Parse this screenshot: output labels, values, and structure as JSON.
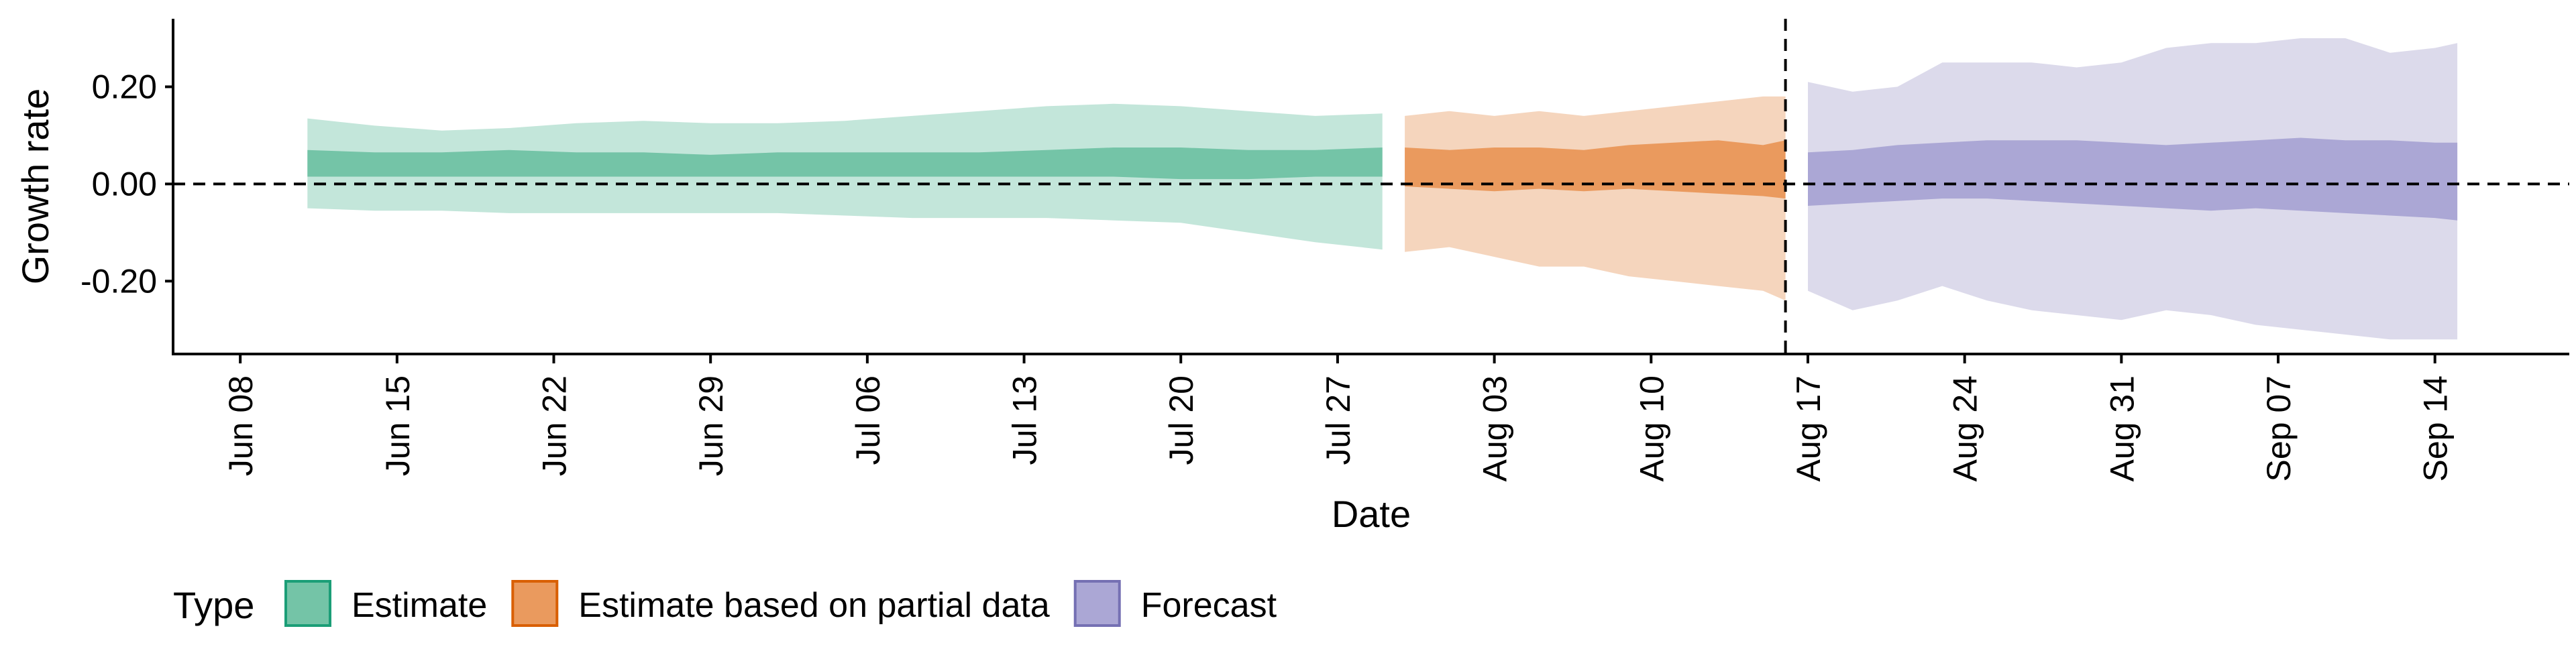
{
  "chart_data": {
    "type": "area",
    "title": "",
    "xlabel": "Date",
    "ylabel": "Growth rate",
    "ylim": [
      -0.35,
      0.34
    ],
    "xlim": [
      "2020-06-05",
      "2020-09-20"
    ],
    "grid": false,
    "y_ticks": [
      {
        "value": 0.2,
        "label": "0.20"
      },
      {
        "value": 0.0,
        "label": "0.00"
      },
      {
        "value": -0.2,
        "label": "-0.20"
      }
    ],
    "x_ticks": [
      {
        "date": "2020-06-08",
        "label": "Jun 08"
      },
      {
        "date": "2020-06-15",
        "label": "Jun 15"
      },
      {
        "date": "2020-06-22",
        "label": "Jun 22"
      },
      {
        "date": "2020-06-29",
        "label": "Jun 29"
      },
      {
        "date": "2020-07-06",
        "label": "Jul 06"
      },
      {
        "date": "2020-07-13",
        "label": "Jul 13"
      },
      {
        "date": "2020-07-20",
        "label": "Jul 20"
      },
      {
        "date": "2020-07-27",
        "label": "Jul 27"
      },
      {
        "date": "2020-08-03",
        "label": "Aug 03"
      },
      {
        "date": "2020-08-10",
        "label": "Aug 10"
      },
      {
        "date": "2020-08-17",
        "label": "Aug 17"
      },
      {
        "date": "2020-08-24",
        "label": "Aug 24"
      },
      {
        "date": "2020-08-31",
        "label": "Aug 31"
      },
      {
        "date": "2020-09-07",
        "label": "Sep 07"
      },
      {
        "date": "2020-09-14",
        "label": "Sep 14"
      }
    ],
    "reference_lines": {
      "horizontal_y": 0.0,
      "vertical_date": "2020-08-16"
    },
    "legend": {
      "title": "Type",
      "position": "bottom-left",
      "items": [
        "Estimate",
        "Estimate based on partial data",
        "Forecast"
      ]
    },
    "series": [
      {
        "name": "Estimate",
        "color": "#1B9E77",
        "fill_outer": "#C3E6DA",
        "fill_inner": "#74C4A7",
        "x": [
          "2020-06-11",
          "2020-06-14",
          "2020-06-17",
          "2020-06-20",
          "2020-06-23",
          "2020-06-26",
          "2020-06-29",
          "2020-07-02",
          "2020-07-05",
          "2020-07-08",
          "2020-07-11",
          "2020-07-14",
          "2020-07-17",
          "2020-07-20",
          "2020-07-23",
          "2020-07-26",
          "2020-07-29"
        ],
        "outer_upper": [
          0.135,
          0.12,
          0.11,
          0.115,
          0.125,
          0.13,
          0.125,
          0.125,
          0.13,
          0.14,
          0.15,
          0.16,
          0.165,
          0.16,
          0.15,
          0.14,
          0.145
        ],
        "inner_upper": [
          0.07,
          0.065,
          0.065,
          0.07,
          0.065,
          0.065,
          0.06,
          0.065,
          0.065,
          0.065,
          0.065,
          0.07,
          0.075,
          0.075,
          0.07,
          0.07,
          0.075
        ],
        "inner_lower": [
          0.015,
          0.015,
          0.015,
          0.015,
          0.015,
          0.015,
          0.015,
          0.015,
          0.015,
          0.015,
          0.015,
          0.015,
          0.015,
          0.01,
          0.01,
          0.015,
          0.015
        ],
        "outer_lower": [
          -0.05,
          -0.055,
          -0.055,
          -0.06,
          -0.06,
          -0.06,
          -0.06,
          -0.06,
          -0.065,
          -0.07,
          -0.07,
          -0.07,
          -0.075,
          -0.08,
          -0.1,
          -0.12,
          -0.135
        ]
      },
      {
        "name": "Estimate based on partial data",
        "color": "#D95F02",
        "fill_outer": "#F5D5BD",
        "fill_inner": "#EA9A5E",
        "x": [
          "2020-07-30",
          "2020-08-01",
          "2020-08-03",
          "2020-08-05",
          "2020-08-07",
          "2020-08-09",
          "2020-08-11",
          "2020-08-13",
          "2020-08-15",
          "2020-08-16"
        ],
        "outer_upper": [
          0.14,
          0.15,
          0.14,
          0.15,
          0.14,
          0.15,
          0.16,
          0.17,
          0.18,
          0.18
        ],
        "inner_upper": [
          0.075,
          0.07,
          0.075,
          0.075,
          0.07,
          0.08,
          0.085,
          0.09,
          0.08,
          0.09
        ],
        "inner_lower": [
          -0.005,
          -0.01,
          -0.015,
          -0.01,
          -0.015,
          -0.01,
          -0.015,
          -0.02,
          -0.025,
          -0.03
        ],
        "outer_lower": [
          -0.14,
          -0.13,
          -0.15,
          -0.17,
          -0.17,
          -0.19,
          -0.2,
          -0.21,
          -0.22,
          -0.24
        ]
      },
      {
        "name": "Forecast",
        "color": "#7570B3",
        "fill_outer": "#DCDAEB",
        "fill_inner": "#ABA7D5",
        "x": [
          "2020-08-17",
          "2020-08-19",
          "2020-08-21",
          "2020-08-23",
          "2020-08-25",
          "2020-08-27",
          "2020-08-29",
          "2020-08-31",
          "2020-09-02",
          "2020-09-04",
          "2020-09-06",
          "2020-09-08",
          "2020-09-10",
          "2020-09-12",
          "2020-09-14",
          "2020-09-15"
        ],
        "outer_upper": [
          0.21,
          0.19,
          0.2,
          0.25,
          0.25,
          0.25,
          0.24,
          0.25,
          0.28,
          0.29,
          0.29,
          0.3,
          0.3,
          0.27,
          0.28,
          0.29
        ],
        "inner_upper": [
          0.065,
          0.07,
          0.08,
          0.085,
          0.09,
          0.09,
          0.09,
          0.085,
          0.08,
          0.085,
          0.09,
          0.095,
          0.09,
          0.09,
          0.085,
          0.085
        ],
        "inner_lower": [
          -0.045,
          -0.04,
          -0.035,
          -0.03,
          -0.03,
          -0.035,
          -0.04,
          -0.045,
          -0.05,
          -0.055,
          -0.05,
          -0.055,
          -0.06,
          -0.065,
          -0.07,
          -0.075
        ],
        "outer_lower": [
          -0.22,
          -0.26,
          -0.24,
          -0.21,
          -0.24,
          -0.26,
          -0.27,
          -0.28,
          -0.26,
          -0.27,
          -0.29,
          -0.3,
          -0.31,
          -0.32,
          -0.32,
          -0.32
        ]
      }
    ]
  }
}
